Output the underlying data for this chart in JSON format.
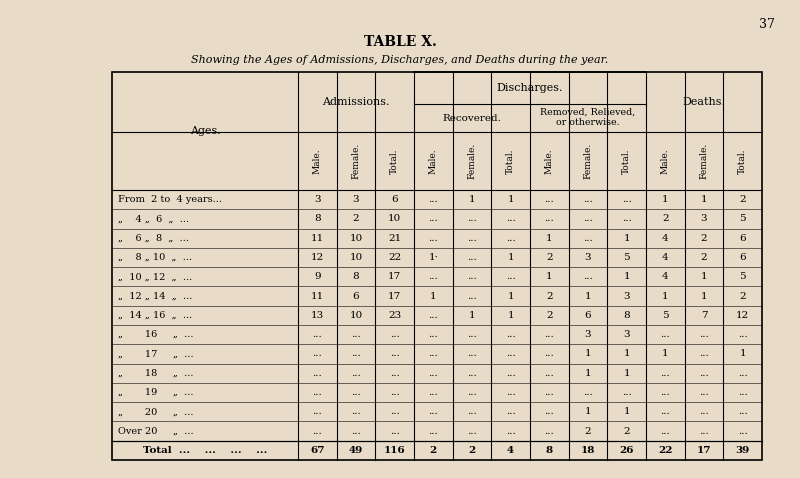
{
  "page_number": "37",
  "title": "TABLE X.",
  "subtitle": "Showing the Ages of Admissions, Discharges, and Deaths during the year.",
  "bg_color": "#e8dcc8",
  "col_headers": [
    "Male.",
    "Female.",
    "Total.",
    "Male.",
    "Female.",
    "Total.",
    "Male.",
    "Female.",
    "Total.",
    "Male.",
    "Female.",
    "Total."
  ],
  "rows": [
    {
      "age": "From  2 to  4 years...",
      "dots": "...    ...",
      "data": [
        "3",
        "3",
        "6",
        "...",
        "1",
        "1",
        "...",
        "...",
        "...",
        "1",
        "1",
        "2"
      ]
    },
    {
      "age": "„    4 „  6  „  ...",
      "dots": "...    ...",
      "data": [
        "8",
        "2",
        "10",
        "...",
        "...",
        "...",
        "...",
        "...",
        "...",
        "2",
        "3",
        "5"
      ]
    },
    {
      "age": "„    6 „  8  „  ...",
      "dots": "...    ...",
      "data": [
        "11",
        "10",
        "21",
        "...",
        "...",
        "...",
        "1",
        "...",
        "1",
        "4",
        "2",
        "6"
      ]
    },
    {
      "age": "„    8 „ 10  „  ...",
      "dots": "...    ...",
      "data": [
        "12",
        "10",
        "22",
        "1·",
        "...",
        "1",
        "2",
        "3",
        "5",
        "4",
        "2",
        "6"
      ]
    },
    {
      "age": "„  10 „ 12  „  ...",
      "dots": "...    ...",
      "data": [
        "9",
        "8",
        "17",
        "...",
        "...",
        "...",
        "1",
        "...",
        "1",
        "4",
        "1",
        "5"
      ]
    },
    {
      "age": "„  12 „ 14  „  ...",
      "dots": "...    ...",
      "data": [
        "11",
        "6",
        "17",
        "1",
        "...",
        "1",
        "2",
        "1",
        "3",
        "1",
        "1",
        "2"
      ]
    },
    {
      "age": "„  14 „ 16  „  ...",
      "dots": "...    ...",
      "data": [
        "13",
        "10",
        "23",
        "...",
        "1",
        "1",
        "2",
        "6",
        "8",
        "5",
        "7",
        "12"
      ]
    },
    {
      "age": "„       16     „  ...",
      "dots": "...    ...",
      "data": [
        "...",
        "...",
        "...",
        "...",
        "...",
        "...",
        "...",
        "3",
        "3",
        "...",
        "...",
        "..."
      ]
    },
    {
      "age": "„       17     „  ...",
      "dots": "...    ...",
      "data": [
        "...",
        "...",
        "...",
        "...",
        "...",
        "...",
        "...",
        "1",
        "1",
        "1",
        "...",
        "1"
      ]
    },
    {
      "age": "„       18     „  ...",
      "dots": "...    ...",
      "data": [
        "...",
        "...",
        "...",
        "...",
        "...",
        "...",
        "...",
        "1",
        "1",
        "...",
        "...",
        "..."
      ]
    },
    {
      "age": "„       19     „  ...",
      "dots": "...    ...",
      "data": [
        "...",
        "...",
        "...",
        "...",
        "...",
        "...",
        "...",
        "...",
        "...",
        "...",
        "...",
        "..."
      ]
    },
    {
      "age": "„       20     „  ...",
      "dots": "...    ...",
      "data": [
        "...",
        "...",
        "...",
        "...",
        "...",
        "...",
        "...",
        "1",
        "1",
        "...",
        "...",
        "..."
      ]
    },
    {
      "age": "Over 20     „  ...",
      "dots": "...    ...",
      "data": [
        "...",
        "...",
        "...",
        "...",
        "...",
        "...",
        "...",
        "2",
        "2",
        "...",
        "...",
        "..."
      ]
    },
    {
      "age": "Total  ...    ...    ...    ...",
      "data": [
        "67",
        "49",
        "116",
        "2",
        "2",
        "4",
        "8",
        "18",
        "26",
        "22",
        "17",
        "39"
      ],
      "is_total": true
    }
  ]
}
